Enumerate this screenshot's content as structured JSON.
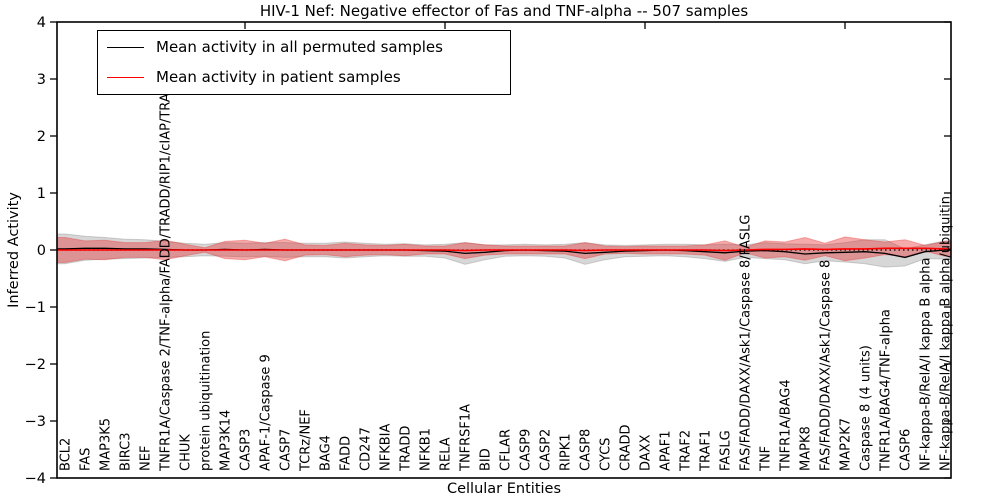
{
  "title": "HIV-1 Nef: Negative effector of Fas and TNF-alpha -- 507 samples",
  "xlabel": "Cellular Entities",
  "ylabel": "Inferred Activity",
  "colors": {
    "permuted_line": "#000000",
    "patient_line": "#ff0000",
    "permuted_band": "rgba(130,130,130,0.32)",
    "patient_band": "rgba(229,45,45,0.40)",
    "frame": "#000000"
  },
  "chart_data": {
    "type": "line",
    "title": "HIV-1 Nef: Negative effector of Fas and TNF-alpha -- 507 samples",
    "xlabel": "Cellular Entities",
    "ylabel": "Inferred Activity",
    "ylim": [
      -4,
      4
    ],
    "yticks": {
      "values": [
        4,
        3,
        2,
        1,
        0,
        -1,
        -2,
        -3,
        -4
      ],
      "labels": [
        "4",
        "3",
        "2",
        "1",
        "0",
        "−1",
        "−2",
        "−3",
        "−4"
      ]
    },
    "top_tick_indices": [
      9,
      19,
      29,
      39
    ],
    "grid": false,
    "zero_line_dotted": true,
    "legend_position": "upper left",
    "categories": [
      "BCL2",
      "FAS",
      "MAP3K5",
      "BIRC3",
      "NEF",
      "TNFR1A/Caspase 2/TNF-alpha/FADD/TRADD/RIP1/cIAP/TRAF1/TRAF2",
      "CHUK",
      "protein ubiquitination",
      "MAP3K14",
      "CASP3",
      "APAF-1/Caspase 9",
      "CASP7",
      "TCRz/NEF",
      "BAG4",
      "FADD",
      "CD247",
      "NFKBIA",
      "TRADD",
      "NFKB1",
      "RELA",
      "TNFRSF1A",
      "BID",
      "CFLAR",
      "CASP9",
      "CASP2",
      "RIPK1",
      "CASP8",
      "CYCS",
      "CRADD",
      "DAXX",
      "APAF1",
      "TRAF2",
      "TRAF1",
      "FASLG",
      "FAS/FADD/DAXX/Ask1/Caspase 8/FASLG",
      "TNF",
      "TNFR1A/BAG4",
      "MAPK8",
      "FAS/FADD/DAXX/Ask1/Caspase 8",
      "MAP2K7",
      "Caspase 8 (4 units)",
      "TNFR1A/BAG4/TNF-alpha",
      "CASP6",
      "NF-kappa-B/RelA/I kappa B alpha",
      "NF-kappa-B/RelA/I kappa B alpha/ubiquitin"
    ],
    "series": [
      {
        "name": "Mean activity in all permuted samples",
        "color": "#000000",
        "values": [
          0.02,
          0.03,
          0.03,
          0.02,
          0.02,
          0.01,
          0.0,
          0.0,
          0.01,
          0.0,
          0.01,
          0.0,
          0.0,
          0.0,
          0.0,
          0.0,
          0.0,
          0.0,
          -0.01,
          -0.02,
          -0.06,
          -0.04,
          -0.01,
          0.0,
          -0.01,
          -0.02,
          -0.06,
          -0.04,
          -0.02,
          -0.01,
          0.0,
          -0.01,
          -0.03,
          -0.05,
          -0.02,
          -0.01,
          -0.03,
          -0.07,
          -0.05,
          -0.04,
          -0.03,
          -0.06,
          -0.13,
          -0.03,
          0.0
        ],
        "band_half_width": [
          0.26,
          0.21,
          0.19,
          0.17,
          0.16,
          0.14,
          0.12,
          0.1,
          0.12,
          0.12,
          0.12,
          0.13,
          0.12,
          0.12,
          0.14,
          0.12,
          0.1,
          0.11,
          0.1,
          0.12,
          0.19,
          0.13,
          0.1,
          0.1,
          0.1,
          0.12,
          0.19,
          0.13,
          0.1,
          0.1,
          0.1,
          0.11,
          0.12,
          0.15,
          0.11,
          0.14,
          0.14,
          0.17,
          0.14,
          0.17,
          0.21,
          0.24,
          0.15,
          0.12,
          0.16
        ]
      },
      {
        "name": "Mean activity in patient samples",
        "color": "#ff0000",
        "values": [
          0.0,
          0.0,
          0.0,
          0.0,
          0.0,
          0.0,
          0.0,
          0.0,
          0.0,
          0.0,
          0.0,
          0.0,
          0.0,
          0.0,
          0.0,
          0.0,
          0.0,
          0.0,
          0.0,
          0.0,
          -0.01,
          0.0,
          0.0,
          0.0,
          0.0,
          0.0,
          -0.01,
          0.0,
          0.0,
          0.0,
          0.0,
          0.0,
          0.0,
          -0.01,
          0.0,
          0.01,
          0.01,
          0.02,
          0.01,
          0.02,
          0.02,
          0.03,
          0.03,
          0.03,
          0.02
        ],
        "band_half_width": [
          0.22,
          0.16,
          0.17,
          0.13,
          0.13,
          0.17,
          0.1,
          0.04,
          0.15,
          0.17,
          0.12,
          0.19,
          0.09,
          0.08,
          0.12,
          0.09,
          0.08,
          0.1,
          0.07,
          0.07,
          0.14,
          0.09,
          0.07,
          0.07,
          0.07,
          0.07,
          0.14,
          0.07,
          0.06,
          0.07,
          0.07,
          0.07,
          0.09,
          0.17,
          0.05,
          0.15,
          0.13,
          0.2,
          0.11,
          0.21,
          0.16,
          0.11,
          0.15,
          0.05,
          0.13
        ]
      }
    ]
  }
}
